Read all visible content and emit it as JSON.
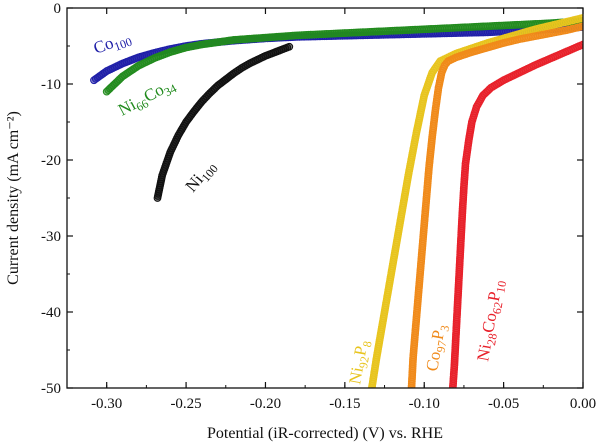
{
  "chart_data": {
    "type": "scatter",
    "title": "",
    "xlabel": "Potential (iR-corrected) (V) vs. RHE",
    "ylabel": "Current density (mA cm⁻²)",
    "xlim": [
      -0.325,
      0.0
    ],
    "ylim": [
      -50,
      0
    ],
    "xticks": [
      "-0.30",
      "-0.25",
      "-0.20",
      "-0.15",
      "-0.10",
      "-0.05",
      "0.00"
    ],
    "yticks": [
      "0",
      "-10",
      "-20",
      "-30",
      "-40",
      "-50"
    ],
    "grid": false,
    "series": [
      {
        "name": "Co100",
        "label_parts": [
          {
            "t": "Co"
          },
          {
            "t": "100",
            "sub": true
          }
        ],
        "color": "#1f1fa8",
        "x": [
          -0.308,
          -0.3,
          -0.29,
          -0.28,
          -0.27,
          -0.26,
          -0.25,
          -0.24,
          -0.23,
          -0.22,
          -0.2,
          -0.18,
          -0.16,
          -0.14,
          -0.12,
          -0.1,
          -0.08,
          -0.06,
          -0.04,
          -0.02,
          0.0
        ],
        "y": [
          -9.5,
          -8.3,
          -7.3,
          -6.5,
          -5.9,
          -5.4,
          -5.0,
          -4.7,
          -4.5,
          -4.3,
          -4.0,
          -3.8,
          -3.7,
          -3.6,
          -3.5,
          -3.4,
          -3.3,
          -3.2,
          -3.0,
          -2.8,
          -2.5
        ]
      },
      {
        "name": "Ni66Co34",
        "label_parts": [
          {
            "t": "Ni"
          },
          {
            "t": "66",
            "sub": true
          },
          {
            "t": "Co"
          },
          {
            "t": "34",
            "sub": true
          }
        ],
        "color": "#228b1e",
        "x": [
          -0.3,
          -0.29,
          -0.28,
          -0.27,
          -0.26,
          -0.25,
          -0.24,
          -0.23,
          -0.22,
          -0.2,
          -0.18,
          -0.16,
          -0.14,
          -0.12,
          -0.1,
          -0.08,
          -0.06,
          -0.04,
          -0.02,
          0.0
        ],
        "y": [
          -11.0,
          -9.0,
          -7.6,
          -6.6,
          -5.8,
          -5.2,
          -4.8,
          -4.5,
          -4.2,
          -3.9,
          -3.6,
          -3.4,
          -3.2,
          -3.0,
          -2.8,
          -2.6,
          -2.4,
          -2.2,
          -2.0,
          -1.7
        ]
      },
      {
        "name": "Ni100",
        "label_parts": [
          {
            "t": "Ni"
          },
          {
            "t": "100",
            "sub": true
          }
        ],
        "color": "#111111",
        "x": [
          -0.268,
          -0.265,
          -0.26,
          -0.255,
          -0.25,
          -0.245,
          -0.24,
          -0.235,
          -0.23,
          -0.225,
          -0.22,
          -0.215,
          -0.21,
          -0.205,
          -0.2,
          -0.195,
          -0.19,
          -0.185
        ],
        "y": [
          -25.0,
          -22.0,
          -19.0,
          -16.8,
          -15.0,
          -13.6,
          -12.3,
          -11.2,
          -10.2,
          -9.4,
          -8.6,
          -7.9,
          -7.3,
          -6.8,
          -6.3,
          -5.9,
          -5.5,
          -5.1
        ]
      },
      {
        "name": "Ni92P8",
        "label_parts": [
          {
            "t": "Ni"
          },
          {
            "t": "92",
            "sub": true
          },
          {
            "t": "P"
          },
          {
            "t": "8",
            "sub": true
          }
        ],
        "color": "#e8c41e",
        "x": [
          -0.133,
          -0.13,
          -0.125,
          -0.12,
          -0.115,
          -0.11,
          -0.105,
          -0.1,
          -0.095,
          -0.09,
          -0.085,
          -0.08,
          -0.07,
          -0.06,
          -0.05,
          -0.04,
          -0.03,
          -0.02,
          -0.01,
          0.0
        ],
        "y": [
          -50.0,
          -46.0,
          -40.0,
          -34.0,
          -28.0,
          -22.0,
          -16.5,
          -11.5,
          -8.5,
          -7.0,
          -6.5,
          -6.0,
          -5.3,
          -4.6,
          -4.0,
          -3.4,
          -2.8,
          -2.3,
          -1.8,
          -1.3
        ]
      },
      {
        "name": "Co97P3",
        "label_parts": [
          {
            "t": "Co"
          },
          {
            "t": "97",
            "sub": true
          },
          {
            "t": "P"
          },
          {
            "t": "3",
            "sub": true
          }
        ],
        "color": "#f08a1a",
        "x": [
          -0.108,
          -0.107,
          -0.105,
          -0.103,
          -0.101,
          -0.099,
          -0.097,
          -0.095,
          -0.093,
          -0.091,
          -0.089,
          -0.087,
          -0.085,
          -0.08,
          -0.07,
          -0.06,
          -0.05,
          -0.04,
          -0.03,
          -0.02,
          -0.01,
          0.0
        ],
        "y": [
          -50.0,
          -46.0,
          -41.0,
          -36.0,
          -31.0,
          -26.0,
          -21.0,
          -17.0,
          -13.5,
          -10.5,
          -8.5,
          -7.5,
          -7.0,
          -6.5,
          -5.8,
          -5.2,
          -4.6,
          -4.1,
          -3.7,
          -3.3,
          -2.9,
          -2.4
        ]
      },
      {
        "name": "Ni28Co62P10",
        "label_parts": [
          {
            "t": "Ni"
          },
          {
            "t": "28",
            "sub": true
          },
          {
            "t": "Co"
          },
          {
            "t": "62",
            "sub": true
          },
          {
            "t": "P"
          },
          {
            "t": "10",
            "sub": true
          }
        ],
        "color": "#e8202a",
        "x": [
          -0.082,
          -0.081,
          -0.08,
          -0.079,
          -0.078,
          -0.077,
          -0.076,
          -0.075,
          -0.074,
          -0.072,
          -0.07,
          -0.067,
          -0.063,
          -0.058,
          -0.05,
          -0.04,
          -0.03,
          -0.02,
          -0.01,
          0.0
        ],
        "y": [
          -50.0,
          -47.0,
          -43.0,
          -39.0,
          -35.0,
          -31.0,
          -27.0,
          -23.5,
          -20.5,
          -17.5,
          -15.0,
          -13.0,
          -11.5,
          -10.5,
          -9.5,
          -8.5,
          -7.5,
          -6.6,
          -5.7,
          -4.8
        ]
      }
    ]
  }
}
